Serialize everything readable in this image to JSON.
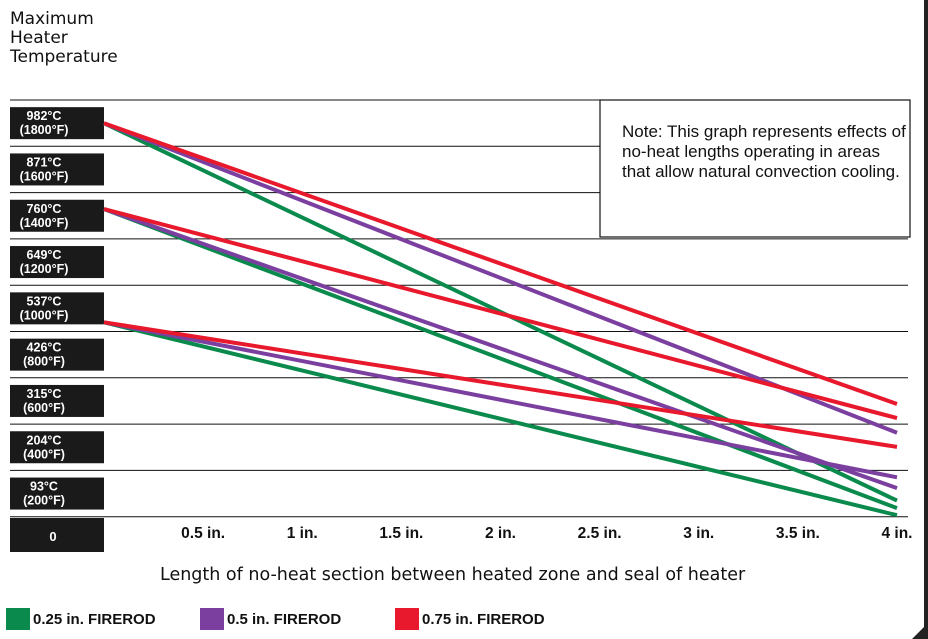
{
  "chart_data": {
    "type": "line",
    "title_lines": [
      "Maximum",
      "Heater",
      "Temperature"
    ],
    "xlabel": "Length of no-heat section between heated zone and seal of heater",
    "x_ticks": [
      {
        "value": 0,
        "label": "0"
      },
      {
        "value": 0.5,
        "label": "0.5 in."
      },
      {
        "value": 1,
        "label": "1 in."
      },
      {
        "value": 1.5,
        "label": "1.5 in."
      },
      {
        "value": 2,
        "label": "2 in."
      },
      {
        "value": 2.5,
        "label": "2.5 in."
      },
      {
        "value": 3,
        "label": "3 in."
      },
      {
        "value": 3.5,
        "label": "3.5 in."
      },
      {
        "value": 4,
        "label": "4 in."
      }
    ],
    "y_ticks": [
      {
        "c": "982°C",
        "f": "(1800°F)"
      },
      {
        "c": "871°C",
        "f": "(1600°F)"
      },
      {
        "c": "760°C",
        "f": "(1400°F)"
      },
      {
        "c": "649°C",
        "f": "(1200°F)"
      },
      {
        "c": "537°C",
        "f": "(1000°F)"
      },
      {
        "c": "426°C",
        "f": "(800°F)"
      },
      {
        "c": "315°C",
        "f": "(600°F)"
      },
      {
        "c": "204°C",
        "f": "(400°F)"
      },
      {
        "c": "93°C",
        "f": "(200°F)"
      }
    ],
    "xlim": [
      0,
      4
    ],
    "grid": true,
    "series": [
      {
        "name": "0.25 in. FIREROD",
        "color": "#0a8a4c",
        "values": [
          [
            0,
            982
          ],
          [
            4,
            76
          ]
        ]
      },
      {
        "name": "0.5 in. FIREROD",
        "color": "#7b3fa0",
        "values": [
          [
            0,
            982
          ],
          [
            4,
            239
          ]
        ]
      },
      {
        "name": "0.75 in. FIREROD",
        "color": "#e8192c",
        "values": [
          [
            0,
            982
          ],
          [
            4,
            308
          ]
        ]
      },
      {
        "name": "0.25 in. FIREROD",
        "color": "#0a8a4c",
        "values": [
          [
            0,
            776
          ],
          [
            4,
            58
          ]
        ]
      },
      {
        "name": "0.5 in. FIREROD",
        "color": "#7b3fa0",
        "values": [
          [
            0,
            776
          ],
          [
            4,
            106
          ]
        ]
      },
      {
        "name": "0.75 in. FIREROD",
        "color": "#e8192c",
        "values": [
          [
            0,
            776
          ],
          [
            4,
            274
          ]
        ]
      },
      {
        "name": "0.25 in. FIREROD",
        "color": "#0a8a4c",
        "values": [
          [
            0,
            504
          ],
          [
            4,
            41
          ]
        ]
      },
      {
        "name": "0.5 in. FIREROD",
        "color": "#7b3fa0",
        "values": [
          [
            0,
            504
          ],
          [
            4,
            132
          ]
        ]
      },
      {
        "name": "0.75 in. FIREROD",
        "color": "#e8192c",
        "values": [
          [
            0,
            504
          ],
          [
            4,
            205
          ]
        ]
      }
    ]
  },
  "note": "Note:  This graph represents effects of no-heat lengths operating in areas that allow natural convection cooling.",
  "legend": [
    {
      "label": "0.25 in. FIREROD",
      "color": "#0a8a4c"
    },
    {
      "label": "0.5 in. FIREROD",
      "color": "#7b3fa0"
    },
    {
      "label": "0.75 in. FIREROD",
      "color": "#e8192c"
    }
  ]
}
